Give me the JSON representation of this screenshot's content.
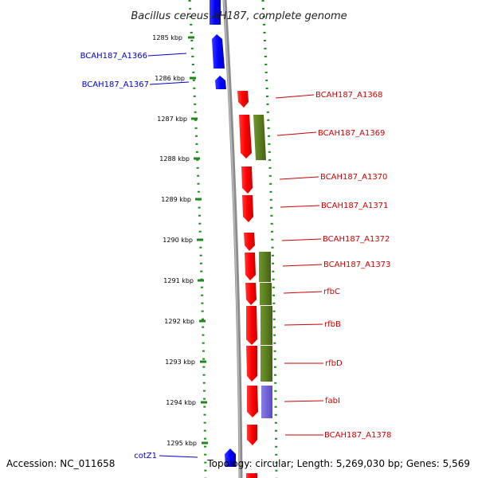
{
  "title": "Bacillus cereus AH187, complete genome",
  "accession_label": "Accession: NC_011658",
  "summary_label": "Topology: circular; Length: 5,269,030 bp; Genes: 5,569",
  "ticks": [
    "1285 kbp",
    "1286 kbp",
    "1287 kbp",
    "1288 kbp",
    "1289 kbp",
    "1290 kbp",
    "1291 kbp",
    "1292 kbp",
    "1293 kbp",
    "1294 kbp",
    "1295 kbp"
  ],
  "left_genes": [
    {
      "name": "BCAH187_A1366",
      "color": "#0000cc"
    },
    {
      "name": "BCAH187_A1367",
      "color": "#0000cc"
    },
    {
      "name": "cotZ1",
      "color": "#0000cc"
    }
  ],
  "right_genes": [
    {
      "name": "BCAH187_A1368",
      "color": "#cc0000"
    },
    {
      "name": "BCAH187_A1369",
      "color": "#cc0000"
    },
    {
      "name": "BCAH187_A1370",
      "color": "#cc0000"
    },
    {
      "name": "BCAH187_A1371",
      "color": "#cc0000"
    },
    {
      "name": "BCAH187_A1372",
      "color": "#cc0000"
    },
    {
      "name": "BCAH187_A1373",
      "color": "#cc0000"
    },
    {
      "name": "rfbC",
      "color": "#cc0000"
    },
    {
      "name": "rfbB",
      "color": "#cc0000"
    },
    {
      "name": "rfbD",
      "color": "#cc0000"
    },
    {
      "name": "fabI",
      "color": "#cc0000"
    },
    {
      "name": "BCAH187_A1378",
      "color": "#cc0000"
    }
  ],
  "colors": {
    "forward_gene": "#ff0000",
    "reverse_gene": "#0000ff",
    "cds_olive": "#5a7f1e",
    "cds_purple": "#6e5fd6",
    "backbone": "#8c8c8c",
    "dotted_track": "#1a8a1a",
    "label_red": "#cc0000",
    "label_blue": "#0000cc"
  }
}
